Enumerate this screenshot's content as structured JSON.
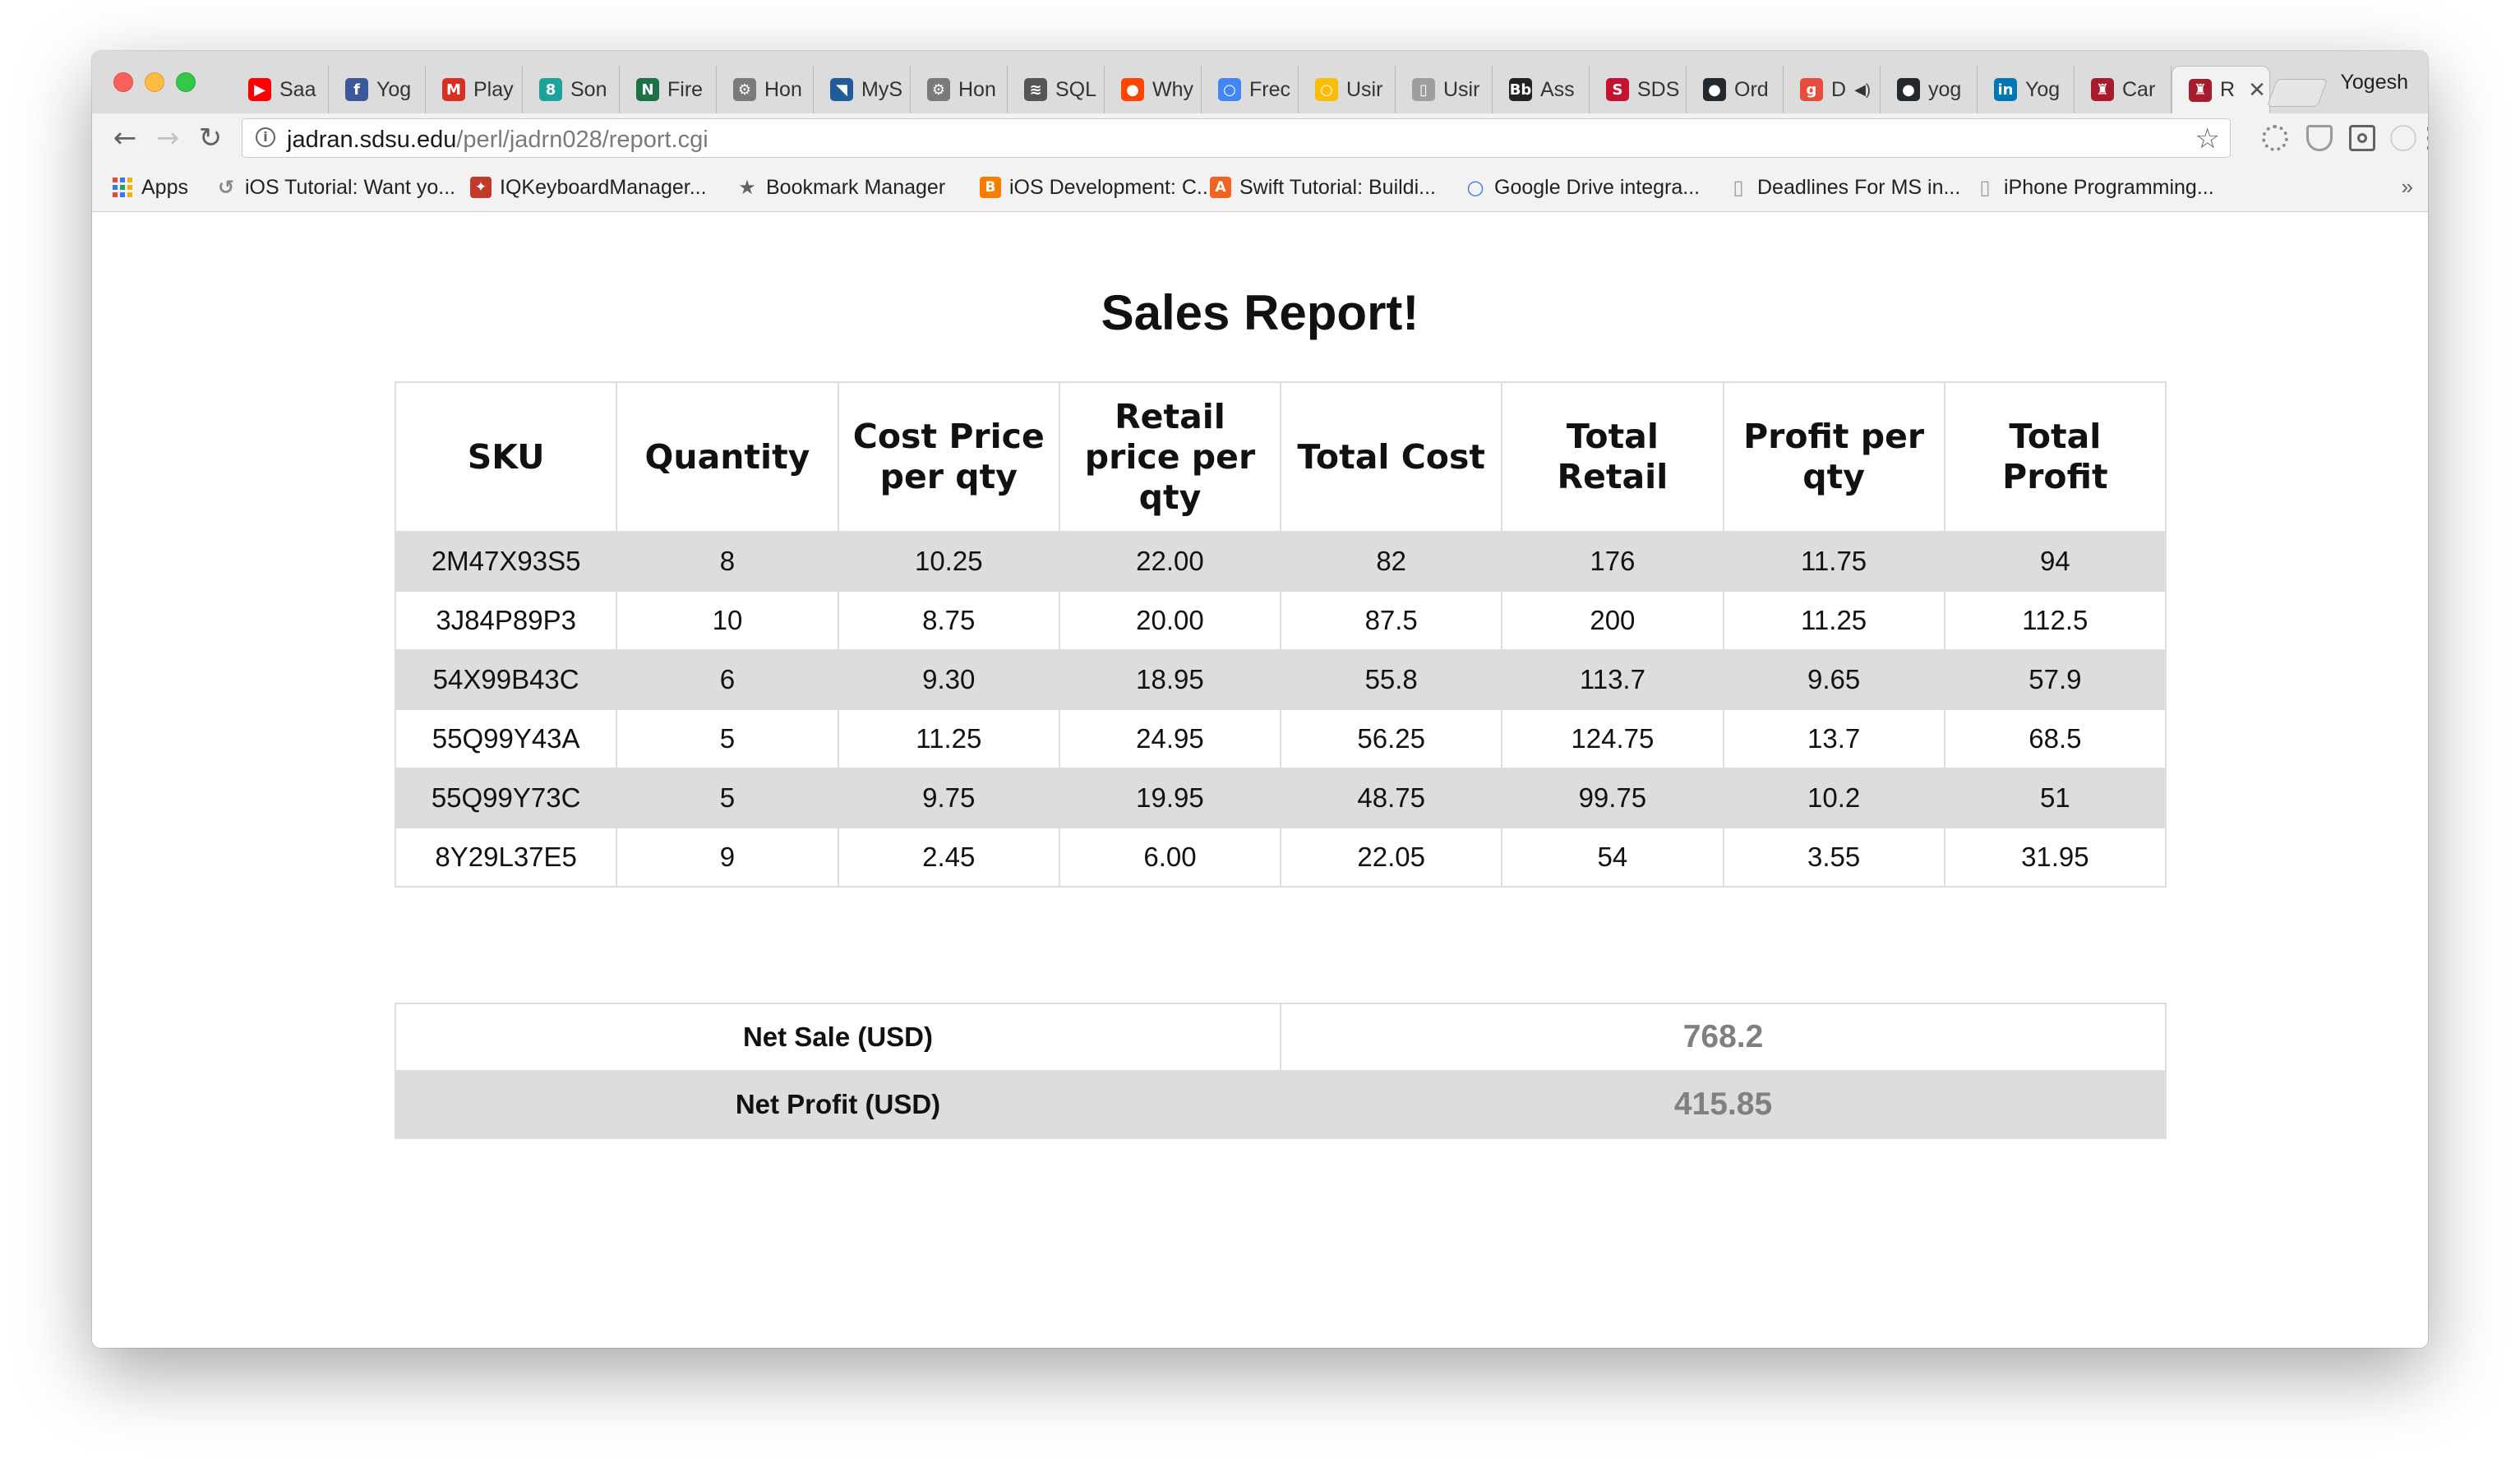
{
  "browser": {
    "tabs": [
      {
        "label": "Saa",
        "icon": "youtube-icon",
        "color": "#ff0000",
        "glyph": "▶"
      },
      {
        "label": "Yog",
        "icon": "facebook-icon",
        "color": "#3b5998",
        "glyph": "f"
      },
      {
        "label": "Play",
        "icon": "gmail-icon",
        "color": "#d93025",
        "glyph": "M"
      },
      {
        "label": "Son",
        "icon": "gradle-icon",
        "color": "#1ba39c",
        "glyph": "8"
      },
      {
        "label": "Fire",
        "icon": "spreadsheet-icon",
        "color": "#1e7145",
        "glyph": "N"
      },
      {
        "label": "Hon",
        "icon": "gear-icon",
        "color": "#7a7a7a",
        "glyph": "⚙"
      },
      {
        "label": "MyS",
        "icon": "mysql-icon",
        "color": "#1f5c99",
        "glyph": "◥"
      },
      {
        "label": "Hon",
        "icon": "gear-icon",
        "color": "#7a7a7a",
        "glyph": "⚙"
      },
      {
        "label": "SQL",
        "icon": "layers-icon",
        "color": "#555555",
        "glyph": "≋"
      },
      {
        "label": "Why",
        "icon": "reddit-icon",
        "color": "#ff4500",
        "glyph": "●"
      },
      {
        "label": "Frec",
        "icon": "google-circle-icon",
        "color": "#4285f4",
        "glyph": "○"
      },
      {
        "label": "Usir",
        "icon": "google-circle-icon",
        "color": "#fbbc05",
        "glyph": "○"
      },
      {
        "label": "Usir",
        "icon": "document-icon",
        "color": "#9e9e9e",
        "glyph": "▯"
      },
      {
        "label": "Ass",
        "icon": "bb-icon",
        "color": "#222222",
        "glyph": "Bb"
      },
      {
        "label": "SDS",
        "icon": "sdsu-icon",
        "color": "#c41230",
        "glyph": "S"
      },
      {
        "label": "Ord",
        "icon": "github-icon",
        "color": "#24292e",
        "glyph": "●"
      },
      {
        "label": "D",
        "icon": "gradebook-icon",
        "color": "#e74c3c",
        "glyph": "g",
        "muted": true
      },
      {
        "label": "yog",
        "icon": "github-icon",
        "color": "#24292e",
        "glyph": "●"
      },
      {
        "label": "Yog",
        "icon": "linkedin-icon",
        "color": "#0077b5",
        "glyph": "in"
      },
      {
        "label": "Car",
        "icon": "person-icon",
        "color": "#a61c2c",
        "glyph": "♜"
      },
      {
        "label": "R",
        "icon": "person-icon",
        "color": "#a61c2c",
        "glyph": "♜",
        "active": true
      }
    ],
    "close_glyph": "✕",
    "profile_name": "Yogesh",
    "url_host": "jadran.sdsu.edu",
    "url_path": "/perl/jadrn028/report.cgi",
    "bookmarks": [
      {
        "label": "Apps",
        "icon": "apps-grid-icon"
      },
      {
        "label": "iOS Tutorial: Want yo...",
        "icon": "bird-icon",
        "color": "#888888",
        "glyph": "↺"
      },
      {
        "label": "IQKeyboardManager...",
        "icon": "octocat-icon",
        "color": "#c0392b",
        "glyph": "✦"
      },
      {
        "label": "Bookmark Manager",
        "icon": "star-icon",
        "color": "#5f6368",
        "glyph": "★"
      },
      {
        "label": "iOS Development: C...",
        "icon": "blogger-icon",
        "color": "#f57d00",
        "glyph": "B"
      },
      {
        "label": "Swift Tutorial: Buildi...",
        "icon": "appcoda-icon",
        "color": "#f06423",
        "glyph": "A"
      },
      {
        "label": "Google Drive integra...",
        "icon": "circle-icon",
        "color": "#3b78e7",
        "glyph": "○"
      },
      {
        "label": "Deadlines For MS in...",
        "icon": "document-icon",
        "color": "#9e9e9e",
        "glyph": "▯"
      },
      {
        "label": "iPhone Programming...",
        "icon": "document-icon",
        "color": "#9e9e9e",
        "glyph": "▯"
      }
    ],
    "more_glyph": "»"
  },
  "report": {
    "title": "Sales Report!",
    "columns": [
      "SKU",
      "Quantity",
      "Cost Price per qty",
      "Retail price per qty",
      "Total Cost",
      "Total Retail",
      "Profit per qty",
      "Total Profit"
    ],
    "rows": [
      [
        "2M47X93S5",
        "8",
        "10.25",
        "22.00",
        "82",
        "176",
        "11.75",
        "94"
      ],
      [
        "3J84P89P3",
        "10",
        "8.75",
        "20.00",
        "87.5",
        "200",
        "11.25",
        "112.5"
      ],
      [
        "54X99B43C",
        "6",
        "9.30",
        "18.95",
        "55.8",
        "113.7",
        "9.65",
        "57.9"
      ],
      [
        "55Q99Y43A",
        "5",
        "11.25",
        "24.95",
        "56.25",
        "124.75",
        "13.7",
        "68.5"
      ],
      [
        "55Q99Y73C",
        "5",
        "9.75",
        "19.95",
        "48.75",
        "99.75",
        "10.2",
        "51"
      ],
      [
        "8Y29L37E5",
        "9",
        "2.45",
        "6.00",
        "22.05",
        "54",
        "3.55",
        "31.95"
      ]
    ],
    "summary": [
      {
        "label": "Net Sale (USD)",
        "value": "768.2"
      },
      {
        "label": "Net Profit (USD)",
        "value": "415.85"
      }
    ]
  }
}
